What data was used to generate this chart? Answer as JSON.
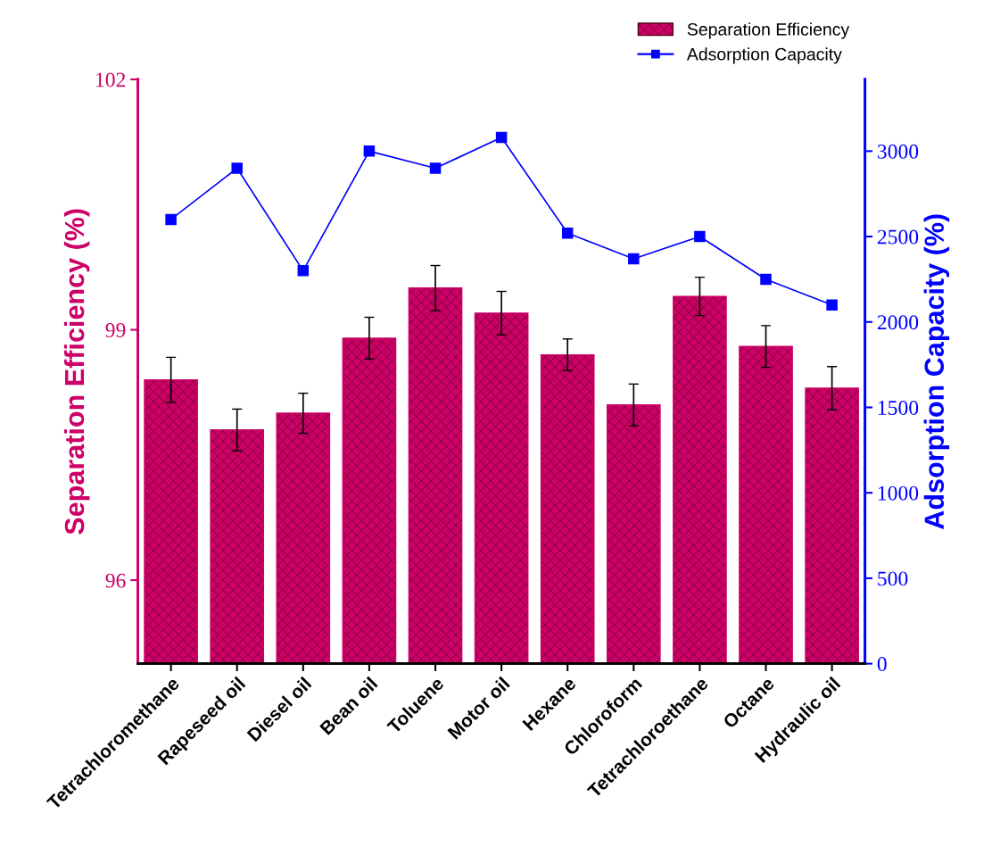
{
  "chart_data": {
    "type": "bar",
    "categories": [
      "Tetrachloromethane",
      "Rapeseed oil",
      "Diesel oil",
      "Bean oil",
      "Toluene",
      "Motor oil",
      "Hexane",
      "Chloroform",
      "Tetrachloroethane",
      "Octane",
      "Hydraulic oil"
    ],
    "ylabel": "Separation Efficiency (%)",
    "y2label": "Adsorption Capacity (%)",
    "series": [
      {
        "name": "Separation Efficiency",
        "color": "#cc0066",
        "values": [
          98.4,
          97.8,
          98.0,
          98.9,
          99.5,
          99.2,
          98.7,
          98.1,
          99.4,
          98.8,
          98.3
        ],
        "errors": [
          0.27,
          0.25,
          0.24,
          0.25,
          0.27,
          0.26,
          0.19,
          0.25,
          0.23,
          0.25,
          0.26
        ]
      },
      {
        "name": "Adsorption Capacity",
        "type": "line",
        "axis": "y2",
        "color": "#0000ff",
        "marker": "square",
        "line_style": "solid",
        "values": [
          2600,
          2900,
          2300,
          3000,
          2900,
          3080,
          2520,
          2370,
          2500,
          2250,
          2100
        ]
      }
    ],
    "ylim": [
      95,
      102
    ],
    "yticks": [
      96,
      99,
      102
    ],
    "y2lim": [
      0,
      3420
    ],
    "y2ticks": [
      0,
      500,
      1000,
      1500,
      2000,
      2500,
      3000
    ],
    "legend": "top right",
    "grid": false
  }
}
